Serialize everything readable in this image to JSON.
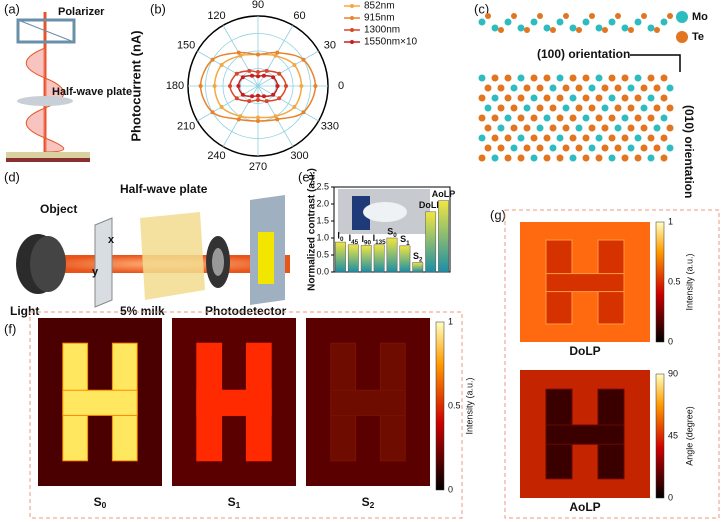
{
  "panel_labels": [
    "(a)",
    "(b)",
    "(c)",
    "(d)",
    "(e)",
    "(f)",
    "(g)"
  ],
  "schematic_a": {
    "polarizer": "Polarizer",
    "waveplate": "Half-wave plate"
  },
  "structure_c": {
    "legend": [
      "Mo",
      "Te"
    ],
    "orientations": [
      "(100) orientation",
      "(010) orientation"
    ]
  },
  "setup_d": {
    "object": "Object",
    "waveplate": "Half-wave plate",
    "x": "x",
    "y": "y",
    "light": "Light",
    "medium": "5% milk",
    "detector": "Photodetector"
  },
  "chart_data": [
    {
      "type": "polar",
      "ylabel": "Photocurrent (nA)",
      "theta": [
        0,
        30,
        60,
        90,
        120,
        150,
        180,
        210,
        240,
        270,
        300,
        330
      ],
      "thetaticks": [
        0,
        30,
        60,
        90,
        120,
        150,
        180,
        210,
        240,
        270,
        300,
        330
      ],
      "rlim": [
        0,
        1
      ],
      "rticks": [
        0.25,
        0.5,
        0.75,
        1
      ],
      "series": [
        {
          "name": "852nm",
          "color": "#f5a742",
          "values": [
            0.62,
            0.6,
            0.5,
            0.45,
            0.5,
            0.6,
            0.62,
            0.6,
            0.5,
            0.45,
            0.5,
            0.6
          ]
        },
        {
          "name": "915nm",
          "color": "#e8832a",
          "values": [
            0.82,
            0.75,
            0.55,
            0.45,
            0.55,
            0.75,
            0.82,
            0.75,
            0.55,
            0.5,
            0.55,
            0.75
          ]
        },
        {
          "name": "1300nm",
          "color": "#d9472b",
          "values": [
            0.4,
            0.35,
            0.25,
            0.2,
            0.25,
            0.35,
            0.4,
            0.35,
            0.25,
            0.2,
            0.25,
            0.35
          ]
        },
        {
          "name": "1550nm×10",
          "color": "#c81e1e",
          "values": [
            0.28,
            0.25,
            0.17,
            0.14,
            0.17,
            0.25,
            0.28,
            0.25,
            0.17,
            0.14,
            0.17,
            0.25
          ]
        }
      ]
    },
    {
      "type": "bar",
      "ylabel": "Normalized contrast (a.u.)",
      "categories": [
        "I0",
        "I45",
        "I90",
        "I135",
        "S0",
        "S1",
        "S2",
        "DoLP",
        "AoLP"
      ],
      "values": [
        0.88,
        0.8,
        0.78,
        0.8,
        1.0,
        0.77,
        0.28,
        1.77,
        2.1
      ],
      "ylim": [
        0,
        2.5
      ],
      "yticks": [
        {
          "value": 0,
          "label": "0.0"
        },
        0.5,
        {
          "value": 1,
          "label": "1.0"
        },
        1.5,
        {
          "value": 2,
          "label": "2.0"
        },
        2.5
      ],
      "gradient": [
        "#f2e641",
        "#1b8ea6"
      ]
    }
  ],
  "images_f": {
    "labels": [
      "S0",
      "S1",
      "S2"
    ],
    "colorbar": {
      "ticks": [
        1,
        0.5,
        0
      ],
      "label": "Intensity (a.u.)"
    }
  },
  "images_g": {
    "dolp": {
      "label": "DoLP",
      "ticks": [
        1,
        0.5,
        0
      ],
      "colorbar_label": "Intensity (a.u.)"
    },
    "aolp": {
      "label": "AoLP",
      "ticks": [
        90,
        45,
        0
      ],
      "colorbar_label": "Angle (degree)"
    }
  }
}
